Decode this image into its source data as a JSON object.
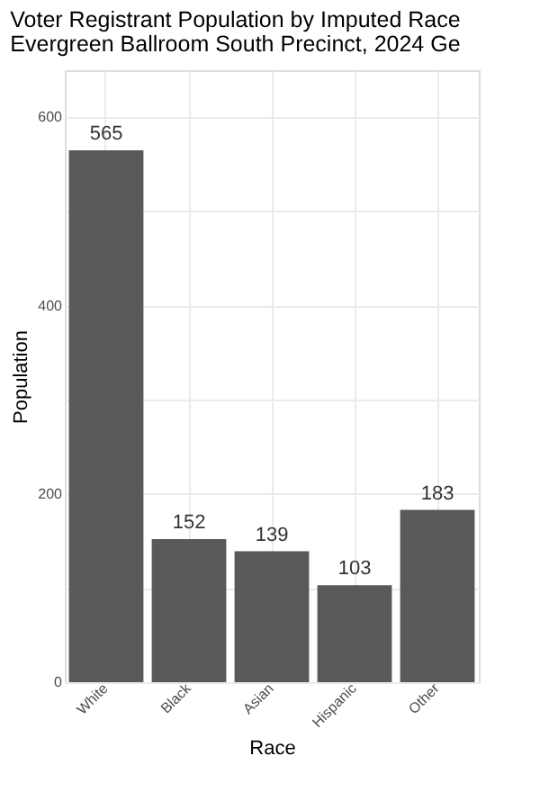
{
  "chart_data": {
    "type": "bar",
    "title": "Voter Registrant Population by Imputed Race",
    "subtitle": "Evergreen Ballroom South Precinct,  2024 Ge",
    "xlabel": "Race",
    "ylabel": "Population",
    "categories": [
      "White",
      "Black",
      "Asian",
      "Hispanic",
      "Other"
    ],
    "values": [
      565,
      152,
      139,
      103,
      183
    ],
    "color": "#595959",
    "ylim": [
      0,
      650
    ],
    "yticks": [
      0,
      {
        "value": 100,
        "label": null
      },
      200,
      {
        "value": 300,
        "label": null
      },
      400,
      {
        "value": 500,
        "label": null
      },
      600
    ],
    "data_labels": true,
    "grid": true
  }
}
